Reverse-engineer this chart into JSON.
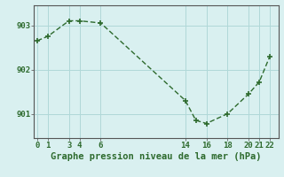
{
  "x": [
    0,
    1,
    3,
    4,
    6,
    14,
    15,
    16,
    18,
    20,
    21,
    22
  ],
  "y": [
    902.65,
    902.75,
    903.1,
    903.1,
    903.05,
    901.3,
    900.85,
    900.78,
    901.0,
    901.45,
    901.72,
    902.3
  ],
  "line_color": "#2d6a2d",
  "marker": "+",
  "marker_size": 4,
  "marker_linewidth": 1.2,
  "line_width": 1.0,
  "bg_color": "#d9f0f0",
  "grid_color": "#b0d8d8",
  "title": "Graphe pression niveau de la mer (hPa)",
  "yticks": [
    901,
    902,
    903
  ],
  "xticks": [
    0,
    1,
    3,
    4,
    6,
    14,
    16,
    18,
    20,
    21,
    22
  ],
  "xlim": [
    -0.3,
    22.8
  ],
  "ylim": [
    900.45,
    903.45
  ],
  "title_fontsize": 7.5,
  "tick_fontsize": 6.5
}
